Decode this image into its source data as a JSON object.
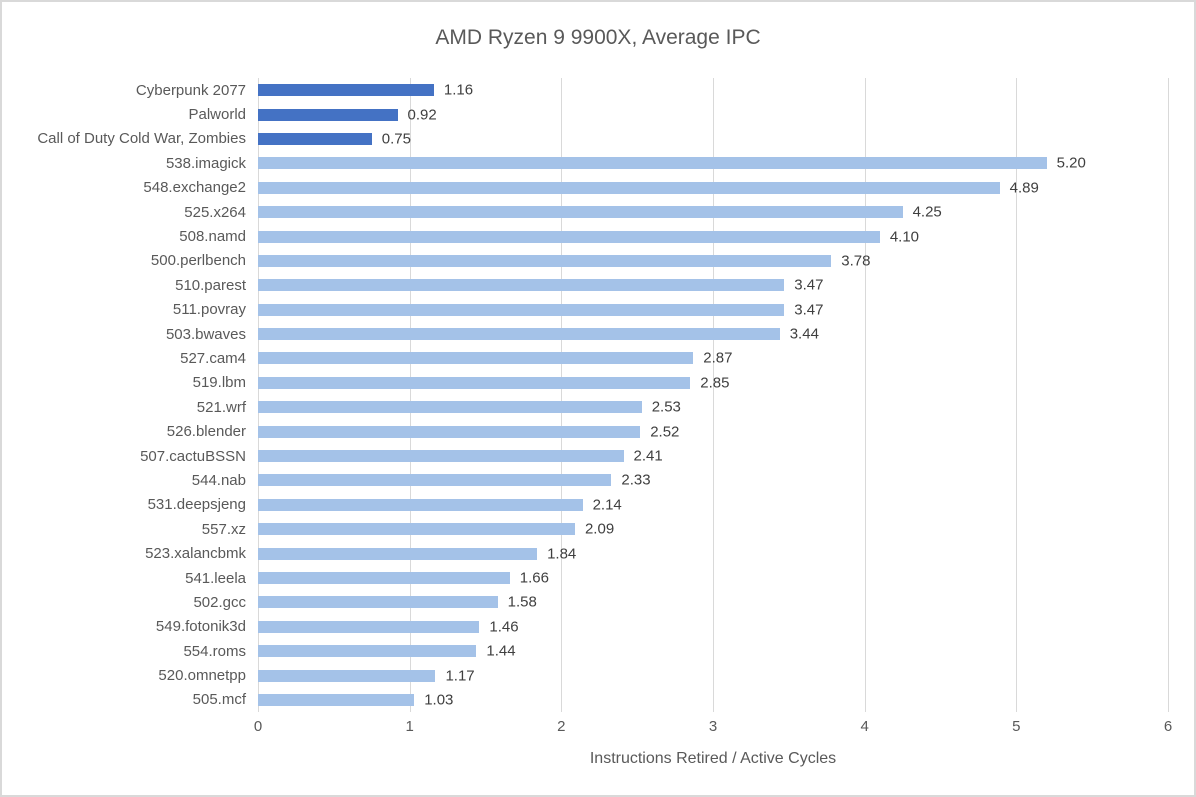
{
  "chart": {
    "title": "AMD Ryzen 9 9900X, Average IPC",
    "xlabel": "Instructions Retired / Active Cycles"
  },
  "chart_data": {
    "type": "bar",
    "orientation": "horizontal",
    "title": "AMD Ryzen 9 9900X, Average IPC",
    "xlabel": "Instructions Retired / Active Cycles",
    "ylabel": "",
    "xlim": [
      0,
      6
    ],
    "xticks": [
      0,
      1,
      2,
      3,
      4,
      5,
      6
    ],
    "grid": true,
    "legend": "none",
    "value_label_format": "2-decimals",
    "categories": [
      "Cyberpunk 2077",
      "Palworld",
      "Call of Duty Cold War, Zombies",
      "538.imagick",
      "548.exchange2",
      "525.x264",
      "508.namd",
      "500.perlbench",
      "510.parest",
      "511.povray",
      "503.bwaves",
      "527.cam4",
      "519.lbm",
      "521.wrf",
      "526.blender",
      "507.cactuBSSN",
      "544.nab",
      "531.deepsjeng",
      "557.xz",
      "523.xalancbmk",
      "541.leela",
      "502.gcc",
      "549.fotonik3d",
      "554.roms",
      "520.omnetpp",
      "505.mcf"
    ],
    "values": [
      1.16,
      0.92,
      0.75,
      5.2,
      4.89,
      4.25,
      4.1,
      3.78,
      3.47,
      3.47,
      3.44,
      2.87,
      2.85,
      2.53,
      2.52,
      2.41,
      2.33,
      2.14,
      2.09,
      1.84,
      1.66,
      1.58,
      1.46,
      1.44,
      1.17,
      1.03
    ],
    "groups": [
      "game",
      "game",
      "game",
      "spec",
      "spec",
      "spec",
      "spec",
      "spec",
      "spec",
      "spec",
      "spec",
      "spec",
      "spec",
      "spec",
      "spec",
      "spec",
      "spec",
      "spec",
      "spec",
      "spec",
      "spec",
      "spec",
      "spec",
      "spec",
      "spec",
      "spec"
    ],
    "colors": {
      "game": "#4472c4",
      "spec": "#a4c2e8"
    },
    "gridline_color": "#d9d9d9",
    "frame_border_color": "#d9d9d9",
    "title_color": "#595959",
    "tick_label_color": "#595959",
    "value_label_color": "#3f3f3f"
  }
}
